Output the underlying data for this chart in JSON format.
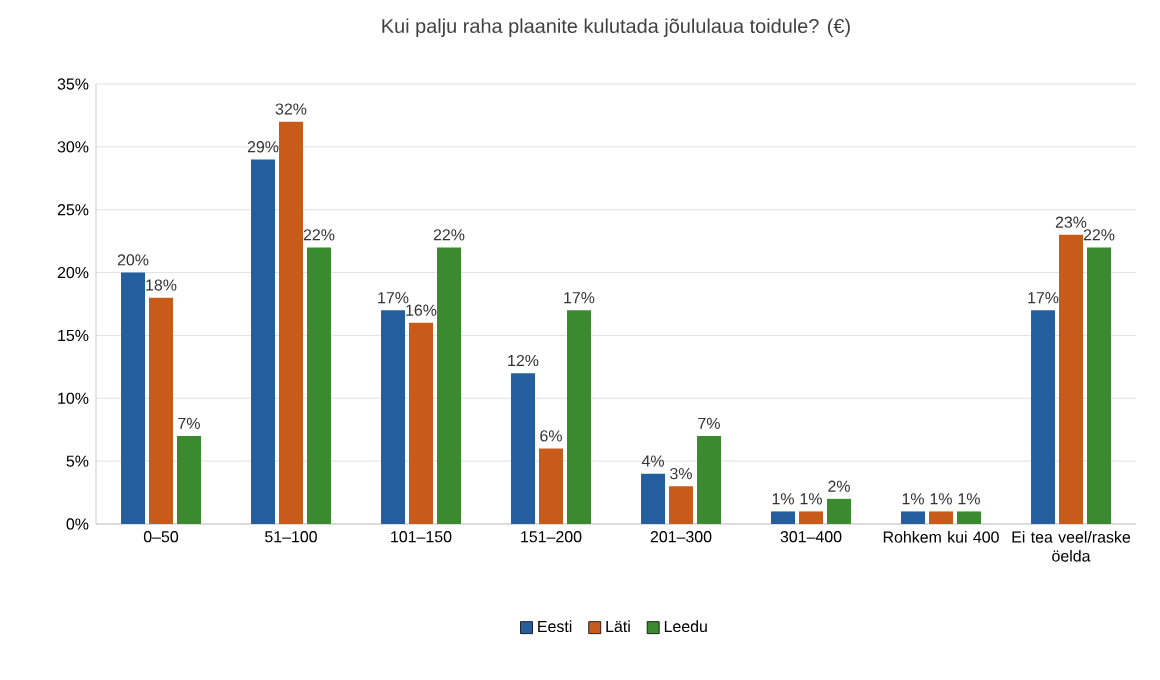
{
  "chart_data": {
    "type": "bar",
    "title": "Kui palju raha plaanite kulutada jõululaua toidule? (€)",
    "categories": [
      "0–50",
      "51–100",
      "101–150",
      "151–200",
      "201–300",
      "301–400",
      "Rohkem kui 400",
      "Ei tea veel/raske öelda"
    ],
    "series": [
      {
        "name": "Eesti",
        "color": "#255e9e",
        "values": [
          20,
          29,
          17,
          12,
          4,
          1,
          1,
          17
        ],
        "value_labels": [
          "20%",
          "29%",
          "17%",
          "12%",
          "4%",
          "1%",
          "1%",
          "17%"
        ]
      },
      {
        "name": "Läti",
        "color": "#c85a1a",
        "values": [
          18,
          32,
          16,
          6,
          3,
          1,
          1,
          23
        ],
        "value_labels": [
          "18%",
          "32%",
          "16%",
          "6%",
          "3%",
          "1%",
          "1%",
          "23%"
        ]
      },
      {
        "name": "Leedu",
        "color": "#3b8a2f",
        "values": [
          7,
          22,
          22,
          17,
          7,
          2,
          1,
          22
        ],
        "value_labels": [
          "7%",
          "22%",
          "22%",
          "17%",
          "7%",
          "2%",
          "1%",
          "22%"
        ]
      }
    ],
    "ylim": [
      0,
      35
    ],
    "yticks": [
      {
        "value": 0,
        "label": "0%"
      },
      {
        "value": 5,
        "label": "5%"
      },
      {
        "value": 10,
        "label": "10%"
      },
      {
        "value": 15,
        "label": "15%"
      },
      {
        "value": 20,
        "label": "20%"
      },
      {
        "value": 25,
        "label": "25%"
      },
      {
        "value": 30,
        "label": "30%"
      },
      {
        "value": 35,
        "label": "35%"
      }
    ],
    "grid": "y",
    "legend": "bottom"
  }
}
